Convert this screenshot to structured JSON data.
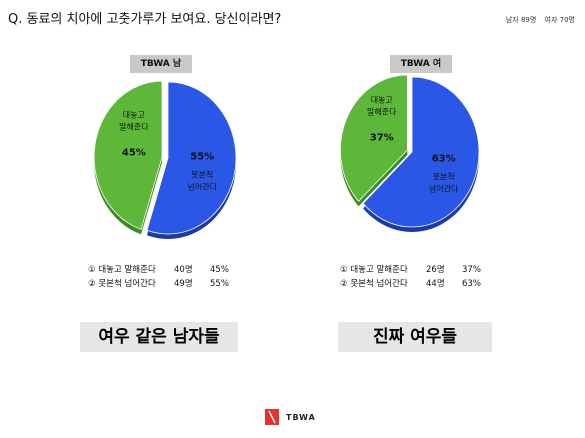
{
  "question": "Q. 동료의 치아에 고춧가루가 보여요. 당신이라면?",
  "sample": {
    "male": "남자 89명",
    "female": "여자 70명"
  },
  "colors": {
    "green": "#5db83a",
    "blue": "#2b57e6",
    "title_bg": "#c9c9c9",
    "verdict_bg": "#e6e6e6",
    "logo_red": "#e6312e"
  },
  "chart_data": [
    {
      "type": "pie",
      "title": "TBWA 남",
      "slices": [
        {
          "label_line1": "대놓고",
          "label_line2": "말해준다",
          "value": 45,
          "pct_label": "45%"
        },
        {
          "label_line1": "못본척",
          "label_line2": "넘어간다",
          "value": 55,
          "pct_label": "55%"
        }
      ],
      "legend": [
        {
          "label": "① 대놓고 말해준다",
          "count": "40명",
          "pct": "45%"
        },
        {
          "label": "② 못본척 넘어간다",
          "count": "49명",
          "pct": "55%"
        }
      ],
      "verdict": "여우 같은 남자들"
    },
    {
      "type": "pie",
      "title": "TBWA 여",
      "slices": [
        {
          "label_line1": "대놓고",
          "label_line2": "말해준다",
          "value": 37,
          "pct_label": "37%"
        },
        {
          "label_line1": "못본척",
          "label_line2": "넘어간다",
          "value": 63,
          "pct_label": "63%"
        }
      ],
      "legend": [
        {
          "label": "① 대놓고 말해준다",
          "count": "26명",
          "pct": "37%"
        },
        {
          "label": "② 못본척 넘어간다",
          "count": "44명",
          "pct": "63%"
        }
      ],
      "verdict": "진짜 여우들"
    }
  ],
  "footer": {
    "logo_text": "TBWA"
  }
}
